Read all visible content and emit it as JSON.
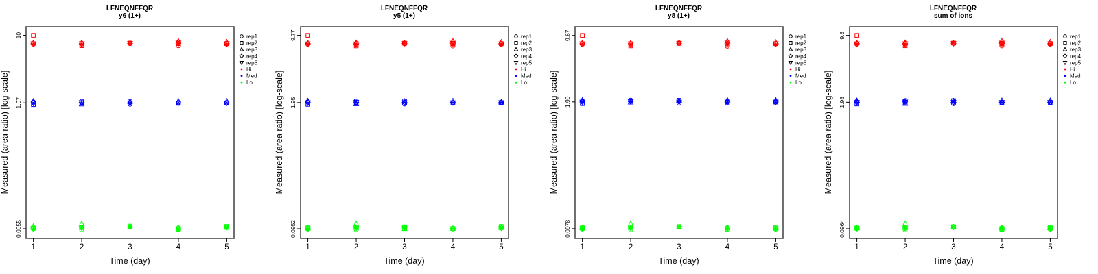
{
  "figure": {
    "background": "#ffffff",
    "box_border_color": "#4d4d4d",
    "text_color": "#000000"
  },
  "legend": {
    "position": "right-of-plot",
    "reps": [
      {
        "label": "rep1",
        "marker": "circle"
      },
      {
        "label": "rep2",
        "marker": "square"
      },
      {
        "label": "rep3",
        "marker": "triangle-up"
      },
      {
        "label": "rep4",
        "marker": "diamond"
      },
      {
        "label": "rep5",
        "marker": "triangle-down"
      }
    ],
    "levels": [
      {
        "label": "Hi",
        "color": "#ff0000"
      },
      {
        "label": "Med",
        "color": "#0000ff"
      },
      {
        "label": "Lo",
        "color": "#00ff00"
      }
    ]
  },
  "chart_data": [
    {
      "type": "scatter",
      "title": "LFNEQNFFQR",
      "subtitle": "y6 (1+)",
      "xlabel": "Time (day)",
      "ylabel": "Measured (area ratio) [log-scale]",
      "x": [
        1,
        2,
        3,
        4,
        5
      ],
      "x_tick_labels": [
        "1",
        "2",
        "3",
        "4",
        "5"
      ],
      "y_scale": "log",
      "grid": false,
      "y_ticks": [
        10,
        1.97,
        0.0955
      ],
      "y_tick_labels": [
        "10",
        "1.97",
        "0.0955"
      ],
      "series": [
        {
          "name": "Hi",
          "color": "#ff0000",
          "reps": {
            "rep1": [
              8.1,
              8.1,
              8.2,
              7.8,
              8.1
            ],
            "rep2": [
              10.0,
              7.8,
              8.3,
              8.2,
              8.2
            ],
            "rep3": [
              8.35,
              8.4,
              8.3,
              8.7,
              8.5
            ],
            "rep4": [
              8.2,
              8.2,
              8.25,
              8.2,
              8.2
            ],
            "rep5": [
              8.2,
              8.2,
              8.25,
              8.35,
              8.2
            ]
          }
        },
        {
          "name": "Med",
          "color": "#0000ff",
          "reps": {
            "rep1": [
              2.01,
              2.05,
              1.91,
              1.97,
              1.97
            ],
            "rep2": [
              1.89,
              1.97,
              2.05,
              1.95,
              1.96
            ],
            "rep3": [
              2.05,
              1.91,
              2.03,
              2.05,
              2.05
            ],
            "rep4": [
              1.97,
              1.99,
              1.97,
              1.97,
              1.97
            ],
            "rep5": [
              1.97,
              1.99,
              1.97,
              1.97,
              1.97
            ]
          }
        },
        {
          "name": "Lo",
          "color": "#00ff00",
          "reps": {
            "rep1": [
              0.0955,
              0.0936,
              0.1,
              0.0975,
              0.0984
            ],
            "rep2": [
              0.0974,
              0.0984,
              0.102,
              0.0945,
              0.1012
            ],
            "rep3": [
              0.1012,
              0.108,
              0.0993,
              0.0965,
              0.0984
            ],
            "rep4": [
              0.0965,
              0.0975,
              0.1,
              0.0955,
              0.0993
            ],
            "rep5": [
              0.0965,
              0.0975,
              0.1,
              0.0955,
              0.0993
            ]
          }
        }
      ]
    },
    {
      "type": "scatter",
      "title": "LFNEQNFFQR",
      "subtitle": "y5 (1+)",
      "xlabel": "Time (day)",
      "ylabel": "Measured (area ratio) [log-scale]",
      "x": [
        1,
        2,
        3,
        4,
        5
      ],
      "x_tick_labels": [
        "1",
        "2",
        "3",
        "4",
        "5"
      ],
      "y_scale": "log",
      "grid": false,
      "y_ticks": [
        9.77,
        1.95,
        0.0952
      ],
      "y_tick_labels": [
        "9.77",
        "1.95",
        "0.0952"
      ],
      "series": [
        {
          "name": "Hi",
          "color": "#ff0000",
          "reps": {
            "rep1": [
              7.9,
              7.9,
              8.0,
              7.6,
              7.9
            ],
            "rep2": [
              9.77,
              7.6,
              8.1,
              8.0,
              8.0
            ],
            "rep3": [
              8.15,
              8.2,
              8.1,
              8.5,
              8.3
            ],
            "rep4": [
              8.0,
              8.0,
              8.05,
              8.0,
              8.0
            ],
            "rep5": [
              8.0,
              8.0,
              8.05,
              8.15,
              8.0
            ]
          }
        },
        {
          "name": "Med",
          "color": "#0000ff",
          "reps": {
            "rep1": [
              1.99,
              2.03,
              1.89,
              1.95,
              1.96
            ],
            "rep2": [
              1.87,
              1.95,
              2.03,
              1.93,
              1.95
            ],
            "rep3": [
              2.03,
              1.89,
              2.01,
              2.03,
              1.97
            ],
            "rep4": [
              1.95,
              1.97,
              1.95,
              1.95,
              1.96
            ],
            "rep5": [
              1.95,
              1.97,
              1.95,
              1.95,
              1.96
            ]
          }
        },
        {
          "name": "Lo",
          "color": "#00ff00",
          "reps": {
            "rep1": [
              0.0945,
              0.0933,
              0.0978,
              0.0962,
              0.0968
            ],
            "rep2": [
              0.0975,
              0.0988,
              0.0998,
              0.0955,
              0.1008
            ],
            "rep3": [
              0.0962,
              0.1075,
              0.0952,
              0.0958,
              0.0975
            ],
            "rep4": [
              0.0958,
              0.0967,
              0.0972,
              0.0958,
              0.0972
            ],
            "rep5": [
              0.0958,
              0.0967,
              0.0972,
              0.0958,
              0.0972
            ]
          }
        }
      ]
    },
    {
      "type": "scatter",
      "title": "LFNEQNFFQR",
      "subtitle": "y8 (1+)",
      "xlabel": "Time (day)",
      "ylabel": "Measured (area ratio) [log-scale]",
      "x": [
        1,
        2,
        3,
        4,
        5
      ],
      "x_tick_labels": [
        "1",
        "2",
        "3",
        "4",
        "5"
      ],
      "y_scale": "log",
      "grid": false,
      "y_ticks": [
        9.67,
        1.99,
        0.0978
      ],
      "y_tick_labels": [
        "9.67",
        "1.99",
        "0.0978"
      ],
      "series": [
        {
          "name": "Hi",
          "color": "#ff0000",
          "reps": {
            "rep1": [
              7.85,
              7.85,
              8.1,
              7.5,
              7.9
            ],
            "rep2": [
              9.67,
              7.55,
              8.0,
              7.9,
              7.95
            ],
            "rep3": [
              8.1,
              8.1,
              8.05,
              8.45,
              8.2
            ],
            "rep4": [
              7.95,
              7.95,
              8.0,
              7.95,
              7.95
            ],
            "rep5": [
              7.95,
              7.95,
              8.0,
              8.1,
              7.95
            ]
          }
        },
        {
          "name": "Med",
          "color": "#0000ff",
          "reps": {
            "rep1": [
              2.03,
              2.07,
              1.93,
              1.99,
              1.99
            ],
            "rep2": [
              1.91,
              2.03,
              2.07,
              1.97,
              1.98
            ],
            "rep3": [
              2.07,
              1.97,
              2.05,
              2.07,
              2.07
            ],
            "rep4": [
              1.99,
              2.01,
              1.99,
              1.99,
              1.99
            ],
            "rep5": [
              1.99,
              2.01,
              1.99,
              1.99,
              1.99
            ]
          }
        },
        {
          "name": "Lo",
          "color": "#00ff00",
          "reps": {
            "rep1": [
              0.097,
              0.0956,
              0.1015,
              0.1,
              0.0966
            ],
            "rep2": [
              0.1,
              0.1008,
              0.103,
              0.0962,
              0.1008
            ],
            "rep3": [
              0.099,
              0.1105,
              0.1022,
              0.0988,
              0.099
            ],
            "rep4": [
              0.0985,
              0.099,
              0.1022,
              0.098,
              0.0985
            ],
            "rep5": [
              0.0985,
              0.099,
              0.1022,
              0.098,
              0.0985
            ]
          }
        }
      ]
    },
    {
      "type": "scatter",
      "title": "LFNEQNFFQR",
      "subtitle": "sum of ions",
      "xlabel": "Time (day)",
      "ylabel": "Measured (area ratio) [log-scale]",
      "x": [
        1,
        2,
        3,
        4,
        5
      ],
      "x_tick_labels": [
        "1",
        "2",
        "3",
        "4",
        "5"
      ],
      "y_scale": "log",
      "grid": false,
      "y_ticks": [
        9.8,
        1.98,
        0.0964
      ],
      "y_tick_labels": [
        "9.8",
        "1.98",
        "0.0964"
      ],
      "series": [
        {
          "name": "Hi",
          "color": "#ff0000",
          "reps": {
            "rep1": [
              7.95,
              7.95,
              8.1,
              7.65,
              7.95
            ],
            "rep2": [
              9.8,
              7.65,
              8.15,
              8.0,
              8.05
            ],
            "rep3": [
              8.2,
              8.25,
              8.15,
              8.55,
              8.35
            ],
            "rep4": [
              8.05,
              8.05,
              8.1,
              8.05,
              8.05
            ],
            "rep5": [
              8.05,
              8.05,
              8.1,
              8.2,
              8.05
            ]
          }
        },
        {
          "name": "Med",
          "color": "#0000ff",
          "reps": {
            "rep1": [
              2.02,
              2.06,
              1.92,
              1.98,
              1.98
            ],
            "rep2": [
              1.9,
              1.98,
              2.06,
              1.96,
              1.97
            ],
            "rep3": [
              2.06,
              1.92,
              2.04,
              2.06,
              2.06
            ],
            "rep4": [
              1.98,
              2.0,
              1.98,
              1.98,
              1.98
            ],
            "rep5": [
              1.98,
              2.0,
              1.98,
              1.98,
              1.98
            ]
          }
        },
        {
          "name": "Lo",
          "color": "#00ff00",
          "reps": {
            "rep1": [
              0.0962,
              0.0942,
              0.1,
              0.0985,
              0.0952
            ],
            "rep2": [
              0.0984,
              0.0995,
              0.1015,
              0.095,
              0.0995
            ],
            "rep3": [
              0.0978,
              0.109,
              0.1005,
              0.0972,
              0.098
            ],
            "rep4": [
              0.0972,
              0.0975,
              0.1005,
              0.0968,
              0.0975
            ],
            "rep5": [
              0.0972,
              0.0975,
              0.1005,
              0.0968,
              0.0975
            ]
          }
        }
      ]
    }
  ]
}
